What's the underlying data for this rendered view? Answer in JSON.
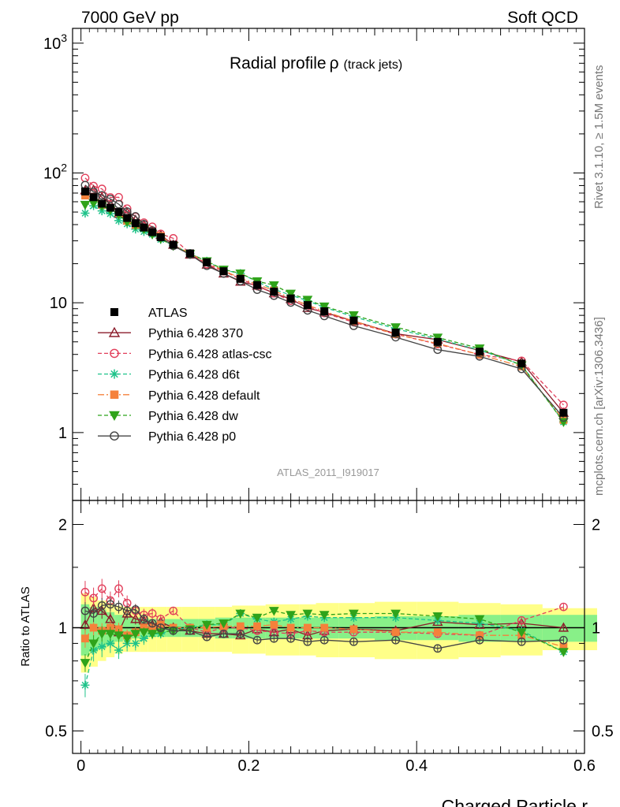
{
  "header": {
    "left": "7000 GeV pp",
    "right": "Soft QCD"
  },
  "side_labels": {
    "rivet": "Rivet 3.1.10, ≥ 1.5M events",
    "mcplots": "mcplots.cern.ch [arXiv:1306.3436]"
  },
  "chart_data": {
    "type": "line",
    "title_main": "Radial profile",
    "title_symbol": "ρ",
    "title_note": "(track jets)",
    "analysis_id": "ATLAS_2011_I919017",
    "xlabel": "Charged Particle r",
    "ylabel_ratio": "Ratio to ATLAS",
    "xlim": [
      -0.01,
      0.6
    ],
    "ylim_main": [
      0.3,
      1300
    ],
    "ylim_ratio": [
      0.43,
      2.35
    ],
    "y_scale": "log",
    "main_y_ticks": [
      "1",
      "10",
      "10^2",
      "10^3"
    ],
    "ratio_y_ticks": [
      "0.5",
      "1",
      "2"
    ],
    "x_ticks": [
      "0",
      "0.2",
      "0.4",
      "0.6"
    ],
    "legend_position": "left-middle",
    "x": [
      0.005,
      0.015,
      0.025,
      0.035,
      0.045,
      0.055,
      0.065,
      0.075,
      0.085,
      0.095,
      0.11,
      0.13,
      0.15,
      0.17,
      0.19,
      0.21,
      0.23,
      0.25,
      0.27,
      0.29,
      0.325,
      0.375,
      0.425,
      0.475,
      0.525,
      0.575
    ],
    "data": {
      "name": "ATLAS",
      "values": [
        72,
        65,
        58,
        54,
        50,
        45,
        41,
        38,
        35,
        32,
        28,
        24,
        20.5,
        17.5,
        15.3,
        13.7,
        12.2,
        10.8,
        9.6,
        8.6,
        7.3,
        5.9,
        5.0,
        4.2,
        3.4,
        1.42
      ],
      "band_stat": [
        0.17,
        0.15,
        0.13,
        0.11,
        0.09,
        0.08,
        0.07,
        0.07,
        0.06,
        0.06,
        0.06,
        0.06,
        0.06,
        0.07,
        0.07,
        0.07,
        0.07,
        0.07,
        0.07,
        0.07,
        0.07,
        0.08,
        0.08,
        0.09,
        0.09,
        0.09
      ],
      "band_total": [
        0.26,
        0.23,
        0.2,
        0.18,
        0.16,
        0.15,
        0.15,
        0.15,
        0.15,
        0.15,
        0.15,
        0.15,
        0.15,
        0.15,
        0.16,
        0.16,
        0.17,
        0.17,
        0.17,
        0.18,
        0.18,
        0.19,
        0.19,
        0.18,
        0.17,
        0.14
      ]
    },
    "series": [
      {
        "name": "Pythia 6.428 370",
        "color": "#8b1c2b",
        "dash": "",
        "marker": "triangle",
        "ratio": [
          1.02,
          1.14,
          1.12,
          1.06,
          0.97,
          1.1,
          1.06,
          1.05,
          1.02,
          1.04,
          1.0,
          0.98,
          0.96,
          0.96,
          0.95,
          0.99,
          0.97,
          0.99,
          0.95,
          0.98,
          0.99,
          0.98,
          1.04,
          1.02,
          1.03,
          1.0
        ]
      },
      {
        "name": "Pythia 6.428 atlas-csc",
        "color": "#e23f5b",
        "dash": "5,3",
        "marker": "circle-open",
        "ratio": [
          1.27,
          1.22,
          1.3,
          1.2,
          1.3,
          1.18,
          1.12,
          1.09,
          1.1,
          1.06,
          1.12,
          1.0,
          0.97,
          1.0,
          1.0,
          0.98,
          0.97,
          0.96,
          0.98,
          0.97,
          0.97,
          0.97,
          0.96,
          0.95,
          1.05,
          1.15
        ]
      },
      {
        "name": "Pythia 6.428 d6t",
        "color": "#1fc38a",
        "dash": "5,3",
        "marker": "star",
        "ratio": [
          0.68,
          0.86,
          0.88,
          0.9,
          0.86,
          0.9,
          0.9,
          0.93,
          0.96,
          0.96,
          0.99,
          1.0,
          1.02,
          1.02,
          1.1,
          1.06,
          1.04,
          1.06,
          1.08,
          1.07,
          1.07,
          1.07,
          1.05,
          1.03,
          0.98,
          0.85
        ]
      },
      {
        "name": "Pythia 6.428 default",
        "color": "#f5813b",
        "dash": "8,3,2,3",
        "marker": "square",
        "ratio": [
          0.93,
          1.0,
          0.98,
          1.0,
          0.99,
          0.95,
          0.97,
          1.0,
          1.0,
          1.02,
          1.0,
          1.0,
          1.0,
          1.01,
          1.01,
          1.01,
          1.02,
          1.0,
          1.0,
          1.0,
          0.99,
          0.97,
          0.97,
          0.95,
          0.95,
          0.88
        ]
      },
      {
        "name": "Pythia 6.428 dw",
        "color": "#2fa31a",
        "dash": "5,3",
        "marker": "triangle-down",
        "ratio": [
          0.79,
          0.9,
          0.96,
          0.96,
          0.95,
          0.93,
          0.96,
          0.97,
          0.96,
          0.97,
          0.98,
          0.99,
          1.02,
          1.03,
          1.1,
          1.07,
          1.12,
          1.09,
          1.1,
          1.09,
          1.1,
          1.1,
          1.08,
          1.06,
          0.97,
          0.85
        ]
      },
      {
        "name": "Pythia 6.428 p0",
        "color": "#444444",
        "dash": "",
        "marker": "circle-open",
        "ratio": [
          1.12,
          1.1,
          1.16,
          1.17,
          1.15,
          1.12,
          1.13,
          1.06,
          1.03,
          1.0,
          0.98,
          0.98,
          0.94,
          0.96,
          0.96,
          0.92,
          0.93,
          0.93,
          0.91,
          0.92,
          0.91,
          0.92,
          0.87,
          0.92,
          0.91,
          0.92
        ]
      }
    ]
  }
}
